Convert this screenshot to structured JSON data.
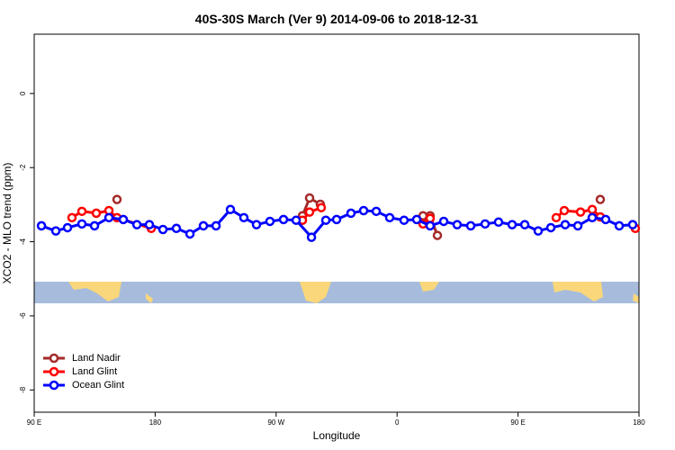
{
  "chart_data": {
    "type": "line",
    "title": "40S-30S March (Ver 9)   2014-09-06 to 2018-12-31",
    "x_label": "Longitude",
    "y_label": "XCO2 - MLO trend (ppm)",
    "xlim": [
      90,
      540
    ],
    "ylim": [
      -8.6,
      1.6
    ],
    "xticks": [
      {
        "value": 90,
        "label": "90 E"
      },
      180,
      {
        "value": 270,
        "label": "90 W"
      },
      {
        "value": 360,
        "label": "0"
      },
      {
        "value": 450,
        "label": "90 E"
      },
      {
        "value": 540,
        "label": "180"
      }
    ],
    "yticks": [
      -8,
      -6,
      -4,
      -2,
      0
    ],
    "legend": "bottom-left",
    "series": [
      {
        "name": "Land Nadir",
        "color": "#a52a2a",
        "x": [
          151.6,
          null,
          289.6,
          294.9,
          302.9,
          null,
          379.3,
          384.6,
          390.0,
          null,
          511.2
        ],
        "values": [
          -2.86,
          null,
          -3.3,
          -2.82,
          -2.99,
          null,
          -3.3,
          -3.3,
          -3.83,
          null,
          -2.86
        ]
      },
      {
        "name": "Land Glint",
        "color": "#ff0000",
        "x": [
          118.1,
          125.5,
          136.2,
          145.6,
          151.6,
          177.1,
          null,
          289.6,
          294.9,
          303.6,
          null,
          379.3,
          384.6,
          null,
          478.4,
          484.4,
          496.5,
          505.2,
          511.2,
          null,
          537.3
        ],
        "values": [
          -3.35,
          -3.18,
          -3.23,
          -3.16,
          -3.35,
          -3.64,
          null,
          -3.42,
          -3.2,
          -3.08,
          null,
          -3.52,
          -3.37,
          null,
          -3.35,
          -3.16,
          -3.2,
          -3.13,
          -3.33,
          null,
          -3.64
        ]
      },
      {
        "name": "Ocean Glint",
        "color": "#0000ff",
        "x": [
          95.4,
          106.1,
          114.8,
          125.5,
          134.9,
          145.6,
          156.3,
          166.4,
          175.7,
          185.8,
          195.8,
          205.9,
          215.9,
          225.3,
          236.0,
          246.0,
          255.4,
          265.4,
          275.5,
          284.9,
          296.3,
          307.0,
          315.0,
          325.7,
          335.1,
          344.5,
          354.5,
          365.2,
          374.6,
          384.6,
          394.7,
          404.7,
          414.8,
          425.5,
          435.5,
          445.6,
          455.0,
          465.0,
          474.4,
          485.1,
          494.5,
          505.2,
          515.2,
          525.3,
          535.3
        ],
        "values": [
          -3.57,
          -3.71,
          -3.62,
          -3.52,
          -3.57,
          -3.35,
          -3.4,
          -3.54,
          -3.54,
          -3.67,
          -3.64,
          -3.79,
          -3.57,
          -3.57,
          -3.13,
          -3.35,
          -3.54,
          -3.45,
          -3.4,
          -3.42,
          -3.88,
          -3.42,
          -3.4,
          -3.23,
          -3.16,
          -3.18,
          -3.35,
          -3.42,
          -3.4,
          -3.57,
          -3.45,
          -3.54,
          -3.57,
          -3.52,
          -3.47,
          -3.54,
          -3.54,
          -3.71,
          -3.62,
          -3.54,
          -3.57,
          -3.35,
          -3.4,
          -3.57,
          -3.54
        ]
      }
    ]
  }
}
